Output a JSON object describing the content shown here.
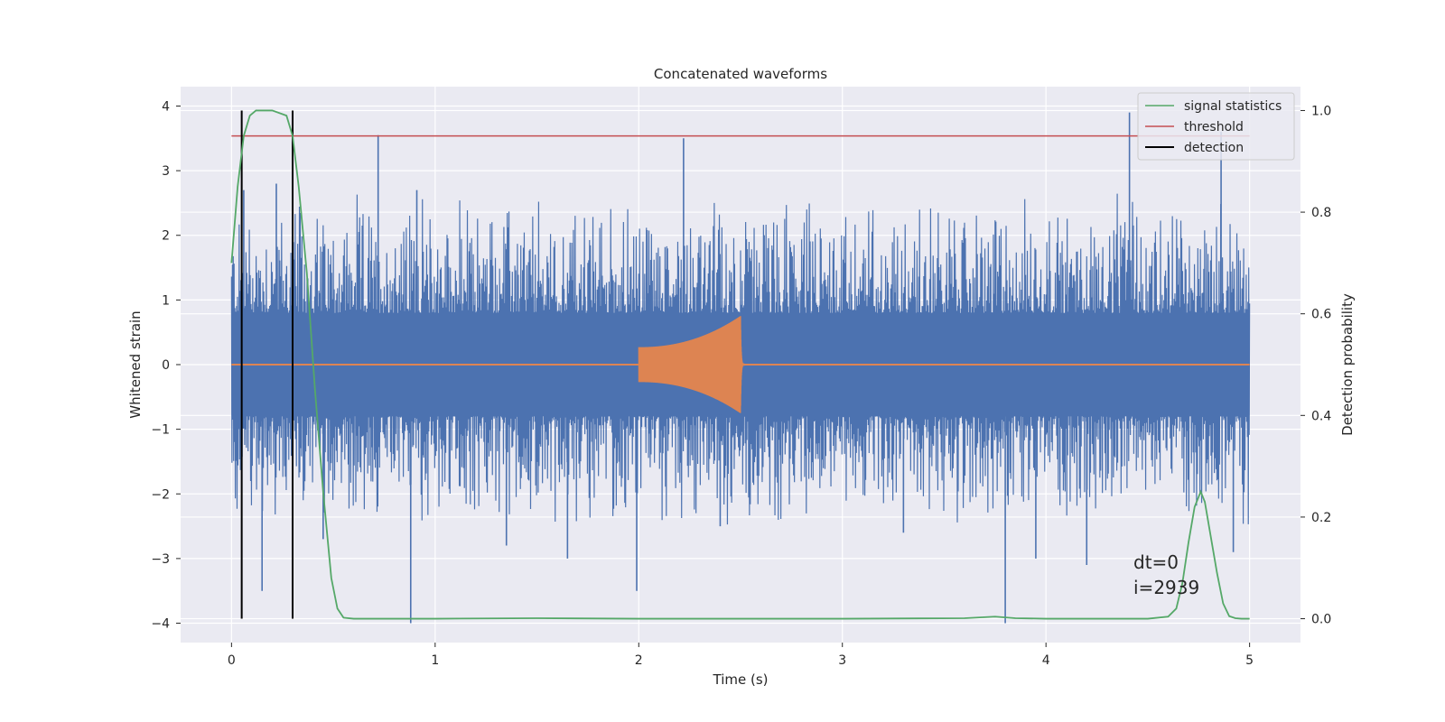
{
  "chart_data": {
    "type": "line",
    "title": "Concatenated waveforms",
    "xlabel": "Time (s)",
    "ylabel": "Whitened strain",
    "y2label": "Detection probability",
    "xlim": [
      -0.25,
      5.25
    ],
    "ylim": [
      -4.3,
      4.3
    ],
    "y2lim": [
      -0.047,
      1.047
    ],
    "xticks": [
      0,
      1,
      2,
      3,
      4,
      5
    ],
    "yticks": [
      -4,
      -3,
      -2,
      -1,
      0,
      1,
      2,
      3,
      4
    ],
    "y2ticks": [
      0.0,
      0.2,
      0.4,
      0.6,
      0.8,
      1.0
    ],
    "grid": true,
    "legend_position": "top-right",
    "colors": {
      "strain": "#4c72b0",
      "injection": "#dd8452",
      "signal_statistics": "#55a868",
      "threshold": "#c44e52",
      "detection": "#000000",
      "axes_bg": "#eaeaf2",
      "grid": "#ffffff"
    },
    "series": [
      {
        "name": "",
        "kind": "strain",
        "x_range": [
          0,
          5
        ],
        "envelope_max": 2.7,
        "envelope_min": -2.6,
        "peaks": [
          {
            "x": 0.06,
            "y": 2.7
          },
          {
            "x": 0.15,
            "y": -3.5
          },
          {
            "x": 0.22,
            "y": 2.8
          },
          {
            "x": 0.45,
            "y": -2.7
          },
          {
            "x": 0.72,
            "y": 3.55
          },
          {
            "x": 0.88,
            "y": -4.0
          },
          {
            "x": 0.91,
            "y": 2.7
          },
          {
            "x": 1.35,
            "y": -2.8
          },
          {
            "x": 1.65,
            "y": -3.0
          },
          {
            "x": 1.99,
            "y": -3.5
          },
          {
            "x": 2.22,
            "y": 3.5
          },
          {
            "x": 2.4,
            "y": -2.5
          },
          {
            "x": 3.3,
            "y": -2.6
          },
          {
            "x": 3.8,
            "y": -4.0
          },
          {
            "x": 3.95,
            "y": -3.0
          },
          {
            "x": 4.2,
            "y": -3.1
          },
          {
            "x": 4.41,
            "y": 3.9
          },
          {
            "x": 4.86,
            "y": 3.6
          },
          {
            "x": 4.92,
            "y": -2.9
          }
        ]
      },
      {
        "name": "",
        "kind": "injection",
        "start": 2.0,
        "merger": 2.5,
        "amp_start": 0.27,
        "amp_peak": 0.75
      },
      {
        "name": "signal statistics",
        "axis": "right",
        "x": [
          0.0,
          0.03,
          0.06,
          0.09,
          0.12,
          0.2,
          0.27,
          0.3,
          0.33,
          0.37,
          0.41,
          0.45,
          0.49,
          0.52,
          0.55,
          0.6,
          1.0,
          1.5,
          2.0,
          3.0,
          3.6,
          3.75,
          3.85,
          4.0,
          4.5,
          4.6,
          4.64,
          4.67,
          4.7,
          4.73,
          4.76,
          4.78,
          4.81,
          4.84,
          4.87,
          4.9,
          4.93,
          4.96,
          5.0
        ],
        "values": [
          0.7,
          0.85,
          0.95,
          0.99,
          1.0,
          1.0,
          0.99,
          0.95,
          0.85,
          0.68,
          0.45,
          0.25,
          0.08,
          0.02,
          0.002,
          0.0,
          0.0,
          0.001,
          0.0,
          0.0,
          0.001,
          0.004,
          0.001,
          0.0,
          0.0,
          0.004,
          0.02,
          0.07,
          0.15,
          0.22,
          0.25,
          0.23,
          0.16,
          0.09,
          0.03,
          0.005,
          0.001,
          0.0,
          0.0
        ]
      },
      {
        "name": "threshold",
        "axis": "right",
        "x": [
          0,
          5
        ],
        "values": [
          0.95,
          0.95
        ]
      },
      {
        "name": "detection",
        "kind": "vlines",
        "axis": "right",
        "x": [
          0.05,
          0.3
        ],
        "ymin": 0.0,
        "ymax": 1.0
      }
    ],
    "annotations": [
      "dt=0",
      "i=2939"
    ]
  }
}
